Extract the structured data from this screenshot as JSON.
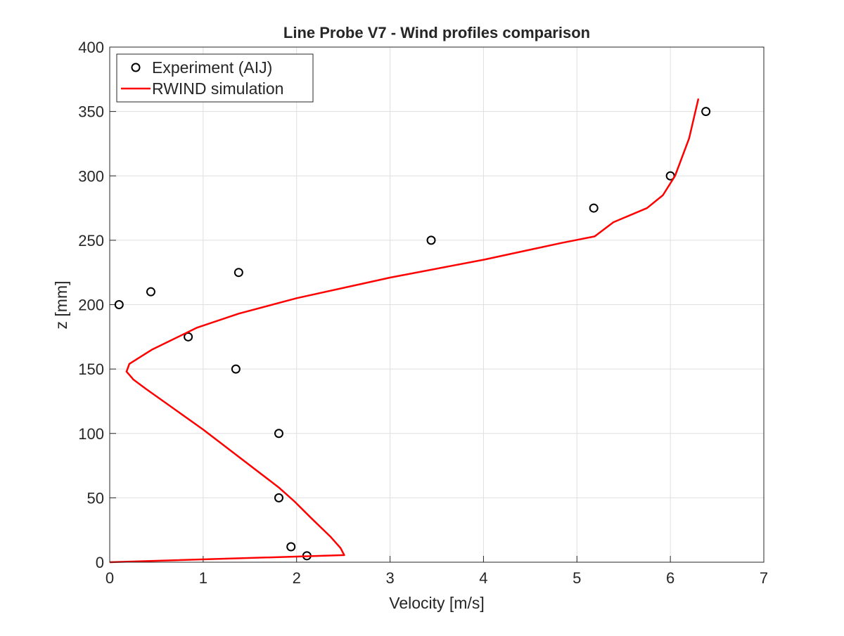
{
  "chart_data": {
    "type": "line",
    "title": "Line Probe V7 - Wind profiles comparison",
    "xlabel": "Velocity [m/s]",
    "ylabel": "z [mm]",
    "xlim": [
      0,
      7
    ],
    "ylim": [
      0,
      400
    ],
    "xticks": [
      0,
      1,
      2,
      3,
      4,
      5,
      6,
      7
    ],
    "yticks": [
      0,
      50,
      100,
      150,
      200,
      250,
      300,
      350,
      400
    ],
    "grid": true,
    "legend_position": "top-left",
    "series": [
      {
        "name": "Experiment (AIJ)",
        "kind": "scatter",
        "marker": "open-circle",
        "color": "#000000",
        "x": [
          2.11,
          1.94,
          1.81,
          1.81,
          1.35,
          0.84,
          0.1,
          0.44,
          1.38,
          3.44,
          5.18,
          6.0,
          6.38
        ],
        "y": [
          5,
          12,
          50,
          100,
          150,
          175,
          200,
          210,
          225,
          250,
          275,
          300,
          350
        ]
      },
      {
        "name": "RWIND simulation",
        "kind": "line",
        "color": "#ff0000",
        "x": [
          0,
          2.51,
          2.47,
          2.36,
          2.16,
          1.98,
          1.81,
          1.0,
          0.38,
          0.25,
          0.24,
          0.18,
          0.21,
          0.45,
          0.93,
          1.38,
          2.0,
          3.0,
          4.01,
          4.84,
          5.19,
          5.39,
          5.75,
          5.92,
          6.05,
          6.2,
          6.3
        ],
        "y": [
          0,
          5.5,
          11,
          20,
          34,
          47,
          58,
          103,
          135,
          142,
          143,
          148,
          154,
          165,
          182,
          193,
          205,
          221,
          235,
          248,
          253,
          264,
          275,
          285,
          300,
          329,
          360
        ]
      }
    ]
  }
}
